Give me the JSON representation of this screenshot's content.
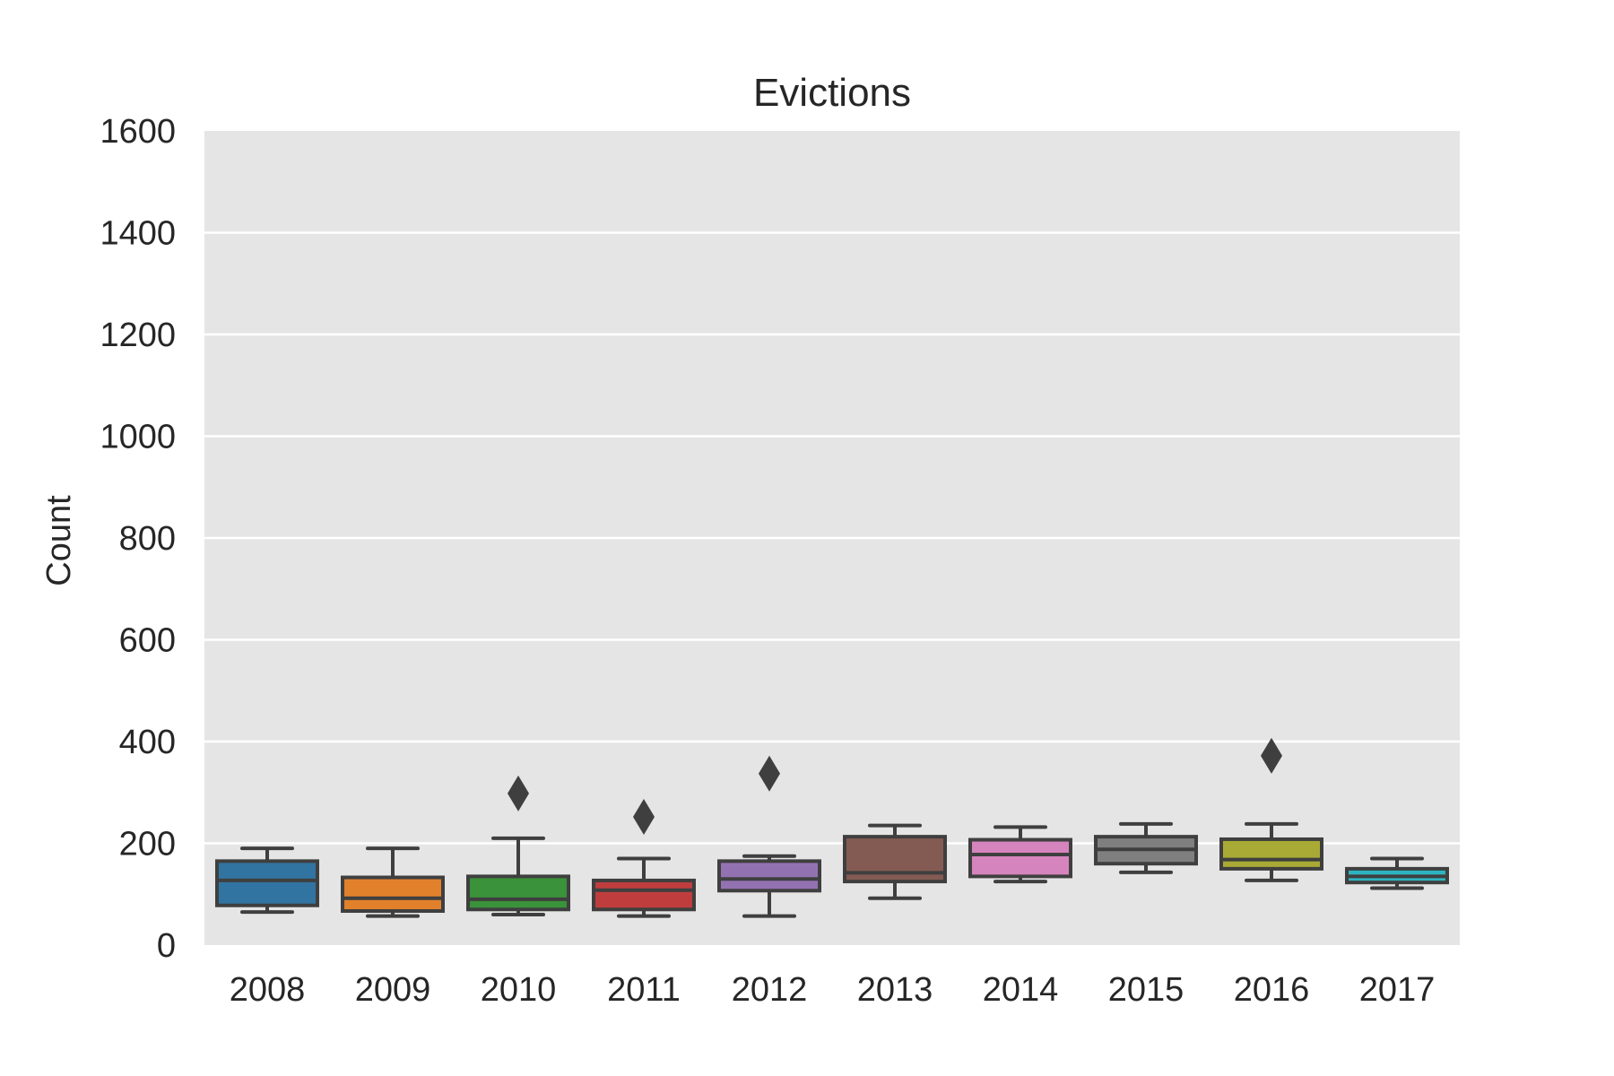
{
  "chart_data": {
    "type": "box",
    "title": "Evictions",
    "xlabel": "",
    "ylabel": "Count",
    "ylim": [
      0,
      1600
    ],
    "yticks": [
      0,
      200,
      400,
      600,
      800,
      1000,
      1200,
      1400,
      1600
    ],
    "grid": true,
    "background": "#e5e5e5",
    "box_edge_color": "#3f3f3f",
    "categories": [
      "2008",
      "2009",
      "2010",
      "2011",
      "2012",
      "2013",
      "2014",
      "2015",
      "2016",
      "2017"
    ],
    "boxes": [
      {
        "category": "2008",
        "color": "#3274a1",
        "whisker_low": 65,
        "q1": 78,
        "median": 127,
        "q3": 165,
        "whisker_high": 190,
        "outliers": []
      },
      {
        "category": "2009",
        "color": "#e1812c",
        "whisker_low": 57,
        "q1": 67,
        "median": 92,
        "q3": 133,
        "whisker_high": 190,
        "outliers": []
      },
      {
        "category": "2010",
        "color": "#3a923a",
        "whisker_low": 60,
        "q1": 70,
        "median": 90,
        "q3": 135,
        "whisker_high": 210,
        "outliers": [
          298
        ]
      },
      {
        "category": "2011",
        "color": "#c03d3e",
        "whisker_low": 57,
        "q1": 70,
        "median": 108,
        "q3": 127,
        "whisker_high": 170,
        "outliers": [
          252
        ]
      },
      {
        "category": "2012",
        "color": "#9372b2",
        "whisker_low": 57,
        "q1": 107,
        "median": 130,
        "q3": 165,
        "whisker_high": 175,
        "outliers": [
          337
        ]
      },
      {
        "category": "2013",
        "color": "#845b53",
        "whisker_low": 92,
        "q1": 125,
        "median": 142,
        "q3": 213,
        "whisker_high": 235,
        "outliers": []
      },
      {
        "category": "2014",
        "color": "#d684bd",
        "whisker_low": 125,
        "q1": 135,
        "median": 178,
        "q3": 207,
        "whisker_high": 232,
        "outliers": []
      },
      {
        "category": "2015",
        "color": "#7f7f7f",
        "whisker_low": 143,
        "q1": 160,
        "median": 188,
        "q3": 213,
        "whisker_high": 238,
        "outliers": []
      },
      {
        "category": "2016",
        "color": "#a9aa35",
        "whisker_low": 127,
        "q1": 150,
        "median": 168,
        "q3": 208,
        "whisker_high": 238,
        "outliers": [
          372
        ]
      },
      {
        "category": "2017",
        "color": "#2eb4c1",
        "whisker_low": 112,
        "q1": 123,
        "median": 135,
        "q3": 150,
        "whisker_high": 170,
        "outliers": []
      }
    ]
  }
}
